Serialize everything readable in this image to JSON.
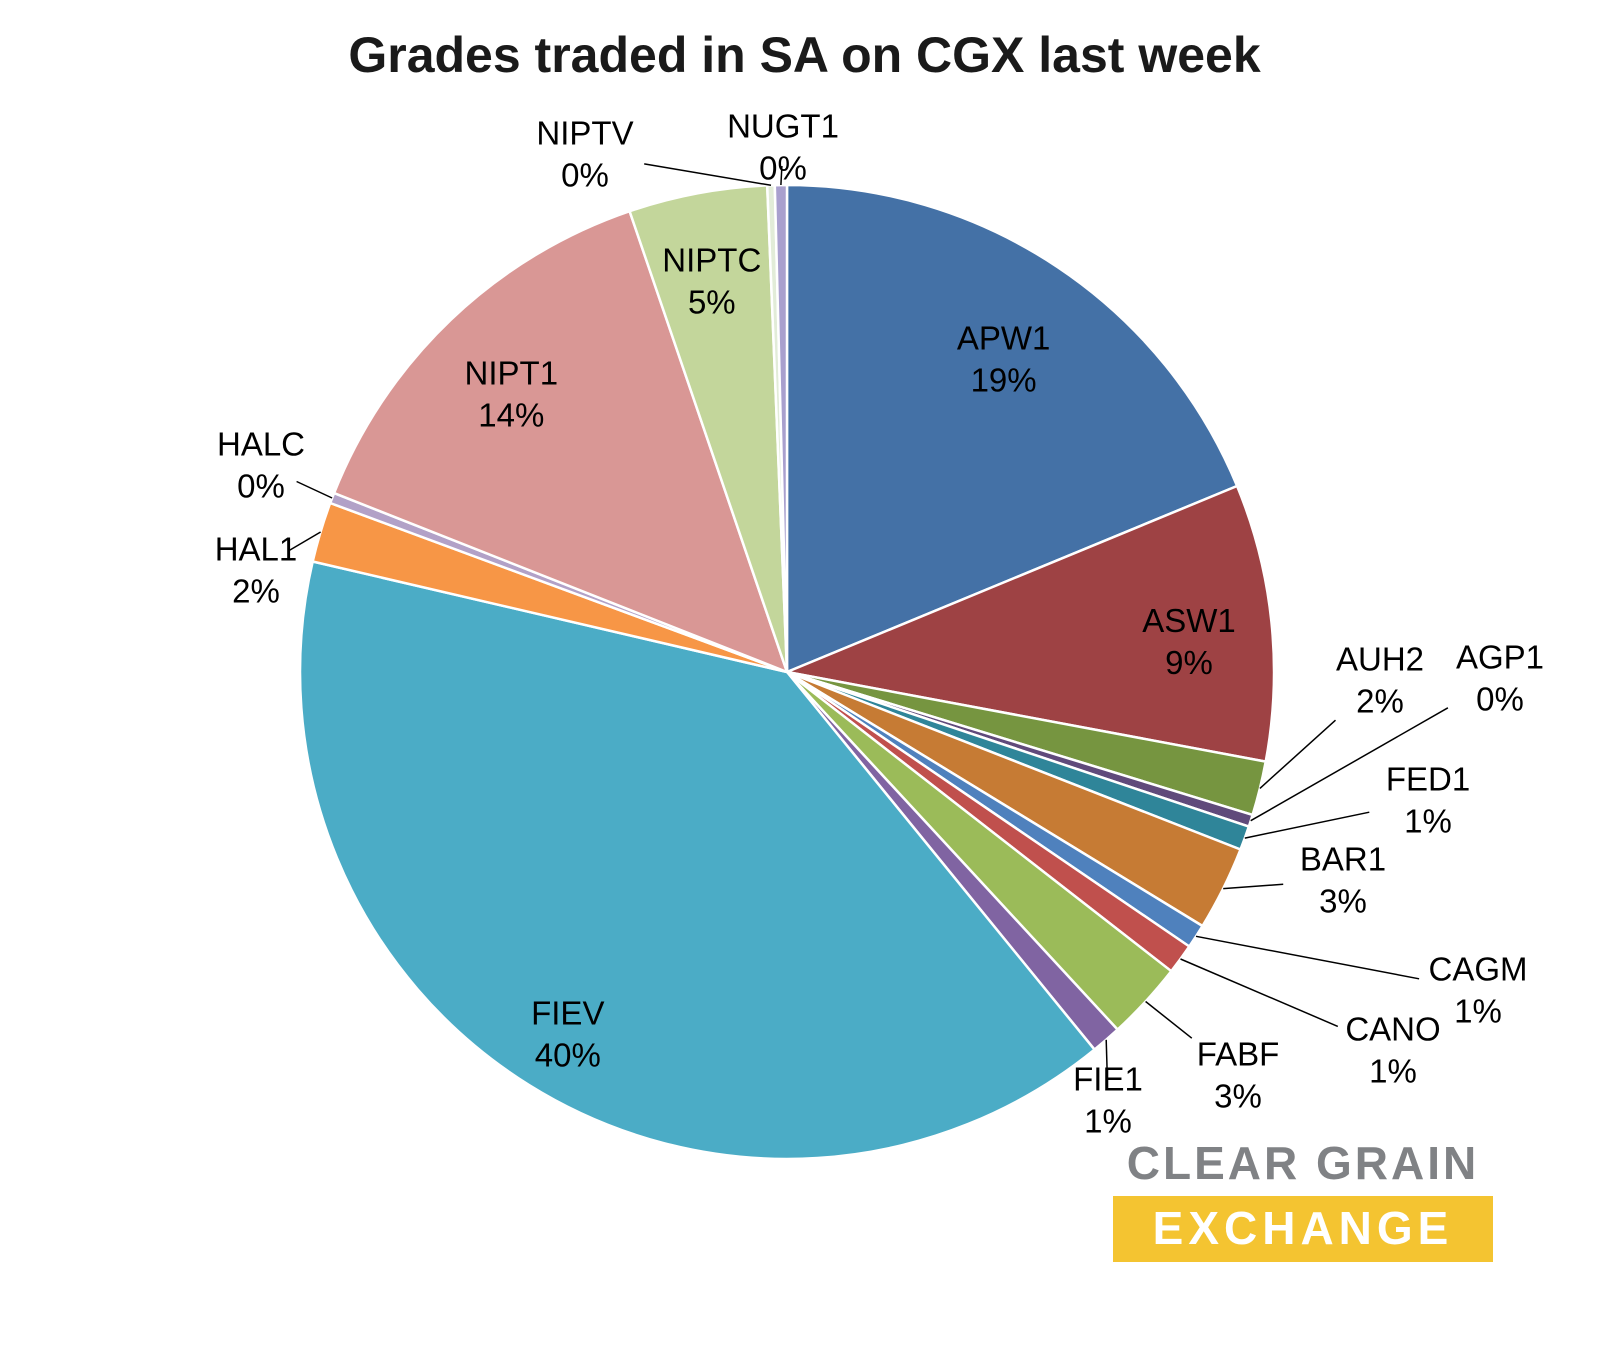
{
  "title": "Grades traded in SA on CGX last week",
  "logo": {
    "line1": "CLEAR GRAIN",
    "line2": "EXCHANGE",
    "accent_color": "#F4C431",
    "gray_color": "#808285",
    "exchange_text_color": "#FFFFFF"
  },
  "chart_data": {
    "type": "pie",
    "title": "Grades traded in SA on CGX last week",
    "start_angle_deg": 0,
    "direction": "clockwise",
    "legend": "none",
    "label_style": "category name and percent; large slices labeled inside, small slices labeled outside with leader lines",
    "slices": [
      {
        "name": "APW1",
        "pct_label": "19%",
        "pct": 19,
        "value_est": 18.8,
        "color": "#4471A6",
        "label_placement": "inside"
      },
      {
        "name": "ASW1",
        "pct_label": "9%",
        "pct": 9,
        "value_est": 9.2,
        "color": "#9E4244",
        "label_placement": "inside"
      },
      {
        "name": "AUH2",
        "pct_label": "2%",
        "pct": 2,
        "value_est": 1.8,
        "color": "#769540",
        "label_placement": "outside"
      },
      {
        "name": "AGP1",
        "pct_label": "0%",
        "pct": 0,
        "value_est": 0.4,
        "color": "#604A7B",
        "label_placement": "outside"
      },
      {
        "name": "FED1",
        "pct_label": "1%",
        "pct": 1,
        "value_est": 0.8,
        "color": "#2F8599",
        "label_placement": "outside"
      },
      {
        "name": "BAR1",
        "pct_label": "3%",
        "pct": 3,
        "value_est": 2.8,
        "color": "#C67B34",
        "label_placement": "outside"
      },
      {
        "name": "CAGM",
        "pct_label": "1%",
        "pct": 1,
        "value_est": 0.8,
        "color": "#4F81BD",
        "label_placement": "outside"
      },
      {
        "name": "CANO",
        "pct_label": "1%",
        "pct": 1,
        "value_est": 1.0,
        "color": "#C0504D",
        "label_placement": "outside"
      },
      {
        "name": "FABF",
        "pct_label": "3%",
        "pct": 3,
        "value_est": 2.6,
        "color": "#9BBB59",
        "label_placement": "outside"
      },
      {
        "name": "FIE1",
        "pct_label": "1%",
        "pct": 1,
        "value_est": 1.0,
        "color": "#8064A2",
        "label_placement": "outside"
      },
      {
        "name": "FIEV",
        "pct_label": "40%",
        "pct": 40,
        "value_est": 39.6,
        "color": "#4BACC6",
        "label_placement": "inside"
      },
      {
        "name": "HAL1",
        "pct_label": "2%",
        "pct": 2,
        "value_est": 2.0,
        "color": "#F79646",
        "label_placement": "outside"
      },
      {
        "name": "HALC",
        "pct_label": "0%",
        "pct": 0,
        "value_est": 0.35,
        "color": "#B2A1C7",
        "label_placement": "outside"
      },
      {
        "name": "NIPT1",
        "pct_label": "14%",
        "pct": 14,
        "value_est": 13.8,
        "color": "#D99795",
        "label_placement": "inside"
      },
      {
        "name": "NIPTC",
        "pct_label": "5%",
        "pct": 5,
        "value_est": 4.6,
        "color": "#C3D69B",
        "label_placement": "inside"
      },
      {
        "name": "NIPTV",
        "pct_label": "0%",
        "pct": 0,
        "value_est": 0.25,
        "color": "#E2ECD8",
        "label_placement": "outside"
      },
      {
        "name": "NUGT1",
        "pct_label": "0%",
        "pct": 0,
        "value_est": 0.4,
        "color": "#A9A0CE",
        "label_placement": "outside"
      }
    ]
  }
}
